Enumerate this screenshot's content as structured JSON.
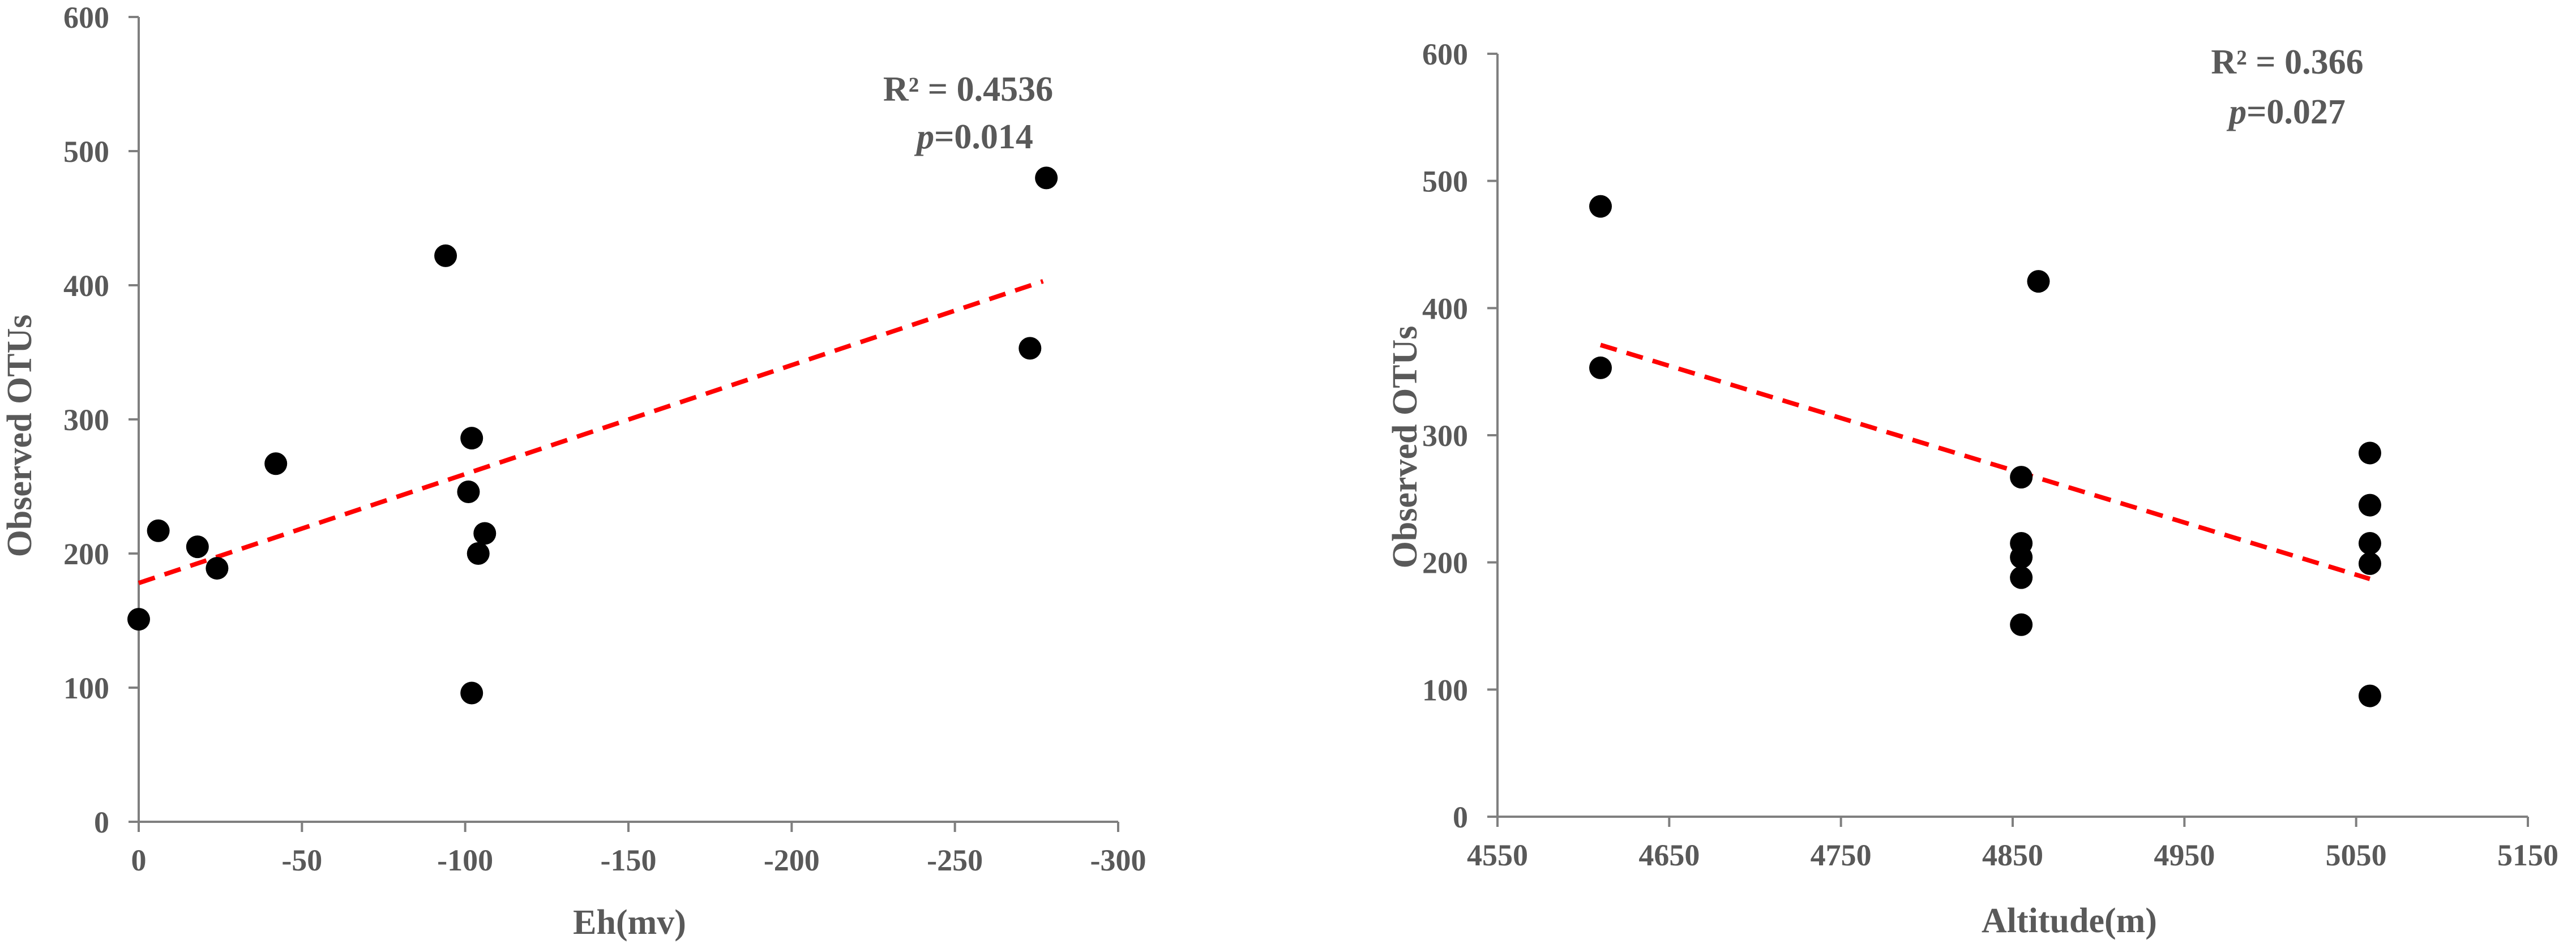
{
  "chart_data": [
    {
      "type": "scatter",
      "xlabel": "Eh(mv)",
      "ylabel": "Observed OTUs",
      "xlim": [
        0,
        -300
      ],
      "ylim": [
        0,
        600
      ],
      "x_ticks": [
        "0",
        "-50",
        "-100",
        "-150",
        "-200",
        "-250",
        "-300"
      ],
      "x_tick_values": [
        0,
        -50,
        -100,
        -150,
        -200,
        -250,
        -300
      ],
      "y_ticks": [
        "0",
        "100",
        "200",
        "300",
        "400",
        "500",
        "600"
      ],
      "y_tick_values": [
        0,
        100,
        200,
        300,
        400,
        500,
        600
      ],
      "annotation": {
        "r2": "R² = 0.4536",
        "p_italic": "p",
        "p_value": "=0.014"
      },
      "series": [
        {
          "x": [
            0,
            -6,
            -18,
            -24,
            -42,
            -94,
            -101,
            -102,
            -102,
            -104,
            -106,
            -273,
            -278
          ],
          "y": [
            151,
            217,
            205,
            189,
            267,
            422,
            246,
            286,
            96,
            200,
            215,
            353,
            480
          ]
        }
      ],
      "trendline": {
        "type": "linear",
        "color": "#ff0000",
        "style": "dashed",
        "x": [
          0,
          -277
        ],
        "y": [
          178,
          403
        ]
      },
      "grid": false,
      "legend": "none"
    },
    {
      "type": "scatter",
      "xlabel": "Altitude(m)",
      "ylabel": "Observed OTUs",
      "xlim": [
        4550,
        5150
      ],
      "ylim": [
        0,
        600
      ],
      "x_ticks": [
        "4550",
        "4650",
        "4750",
        "4850",
        "4950",
        "5050",
        "5150"
      ],
      "x_tick_values": [
        4550,
        4650,
        4750,
        4850,
        4950,
        5050,
        5150
      ],
      "y_ticks": [
        "0",
        "100",
        "200",
        "300",
        "400",
        "500",
        "600"
      ],
      "y_tick_values": [
        0,
        100,
        200,
        300,
        400,
        500,
        600
      ],
      "annotation": {
        "r2": "R² = 0.366",
        "p_italic": "p",
        "p_value": "=0.027"
      },
      "series": [
        {
          "x": [
            4610,
            4610,
            4855,
            4855,
            4855,
            4855,
            4855,
            4865,
            5058,
            5058,
            5058,
            5058,
            5058
          ],
          "y": [
            480,
            353,
            267,
            215,
            204,
            188,
            151,
            421,
            286,
            245,
            215,
            199,
            95
          ]
        }
      ],
      "trendline": {
        "type": "linear",
        "color": "#ff0000",
        "style": "dashed",
        "x": [
          4610,
          5058
        ],
        "y": [
          371,
          187
        ]
      },
      "grid": false,
      "legend": "none"
    }
  ]
}
